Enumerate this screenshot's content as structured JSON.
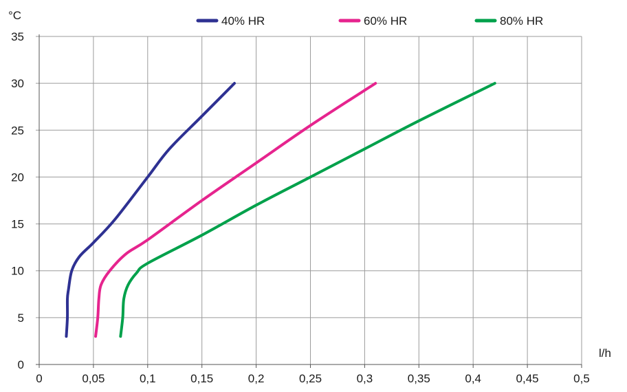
{
  "chart_data": {
    "type": "line",
    "title": "",
    "xlabel": "l/h",
    "ylabel": "°C",
    "xlim": [
      0,
      0.5
    ],
    "ylim": [
      0,
      35
    ],
    "x_ticks": [
      "0",
      "0,05",
      "0,1",
      "0,15",
      "0,2",
      "0,25",
      "0,3",
      "0,35",
      "0,4",
      "0,45",
      "0,5"
    ],
    "y_ticks": [
      "0",
      "5",
      "10",
      "15",
      "20",
      "25",
      "30",
      "35"
    ],
    "grid": true,
    "legend_position": "top",
    "series": [
      {
        "name": "40% HR",
        "color": "#2e3192",
        "points": [
          [
            0.025,
            3
          ],
          [
            0.026,
            5
          ],
          [
            0.026,
            7
          ],
          [
            0.027,
            8
          ],
          [
            0.03,
            10
          ],
          [
            0.037,
            11.5
          ],
          [
            0.05,
            13
          ],
          [
            0.07,
            15.5
          ],
          [
            0.1,
            20
          ],
          [
            0.12,
            23
          ],
          [
            0.15,
            26.5
          ],
          [
            0.18,
            30
          ]
        ]
      },
      {
        "name": "60% HR",
        "color": "#e6248e",
        "points": [
          [
            0.052,
            3
          ],
          [
            0.054,
            5
          ],
          [
            0.055,
            7
          ],
          [
            0.057,
            8.5
          ],
          [
            0.065,
            10
          ],
          [
            0.08,
            11.8
          ],
          [
            0.1,
            13.3
          ],
          [
            0.15,
            17.5
          ],
          [
            0.2,
            21.5
          ],
          [
            0.25,
            25.5
          ],
          [
            0.31,
            30
          ]
        ]
      },
      {
        "name": "80% HR",
        "color": "#00a14b",
        "points": [
          [
            0.075,
            3
          ],
          [
            0.077,
            5
          ],
          [
            0.078,
            7
          ],
          [
            0.082,
            8.5
          ],
          [
            0.09,
            9.8
          ],
          [
            0.1,
            10.8
          ],
          [
            0.15,
            13.8
          ],
          [
            0.2,
            17
          ],
          [
            0.25,
            20
          ],
          [
            0.3,
            23
          ],
          [
            0.35,
            26
          ],
          [
            0.42,
            30
          ]
        ]
      }
    ]
  }
}
